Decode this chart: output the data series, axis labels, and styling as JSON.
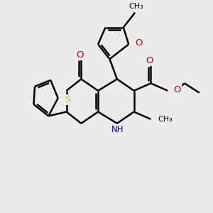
{
  "bg_color": "#ebebeb",
  "atom_colors": {
    "C": "#000000",
    "O": "#cc0000",
    "N": "#0000cc",
    "S": "#cccc00",
    "H": "#000000"
  },
  "bond_color": "#000000",
  "bond_width": 1.8,
  "font_size": 8.5,
  "xlim": [
    0,
    10
  ],
  "ylim": [
    0,
    10
  ]
}
